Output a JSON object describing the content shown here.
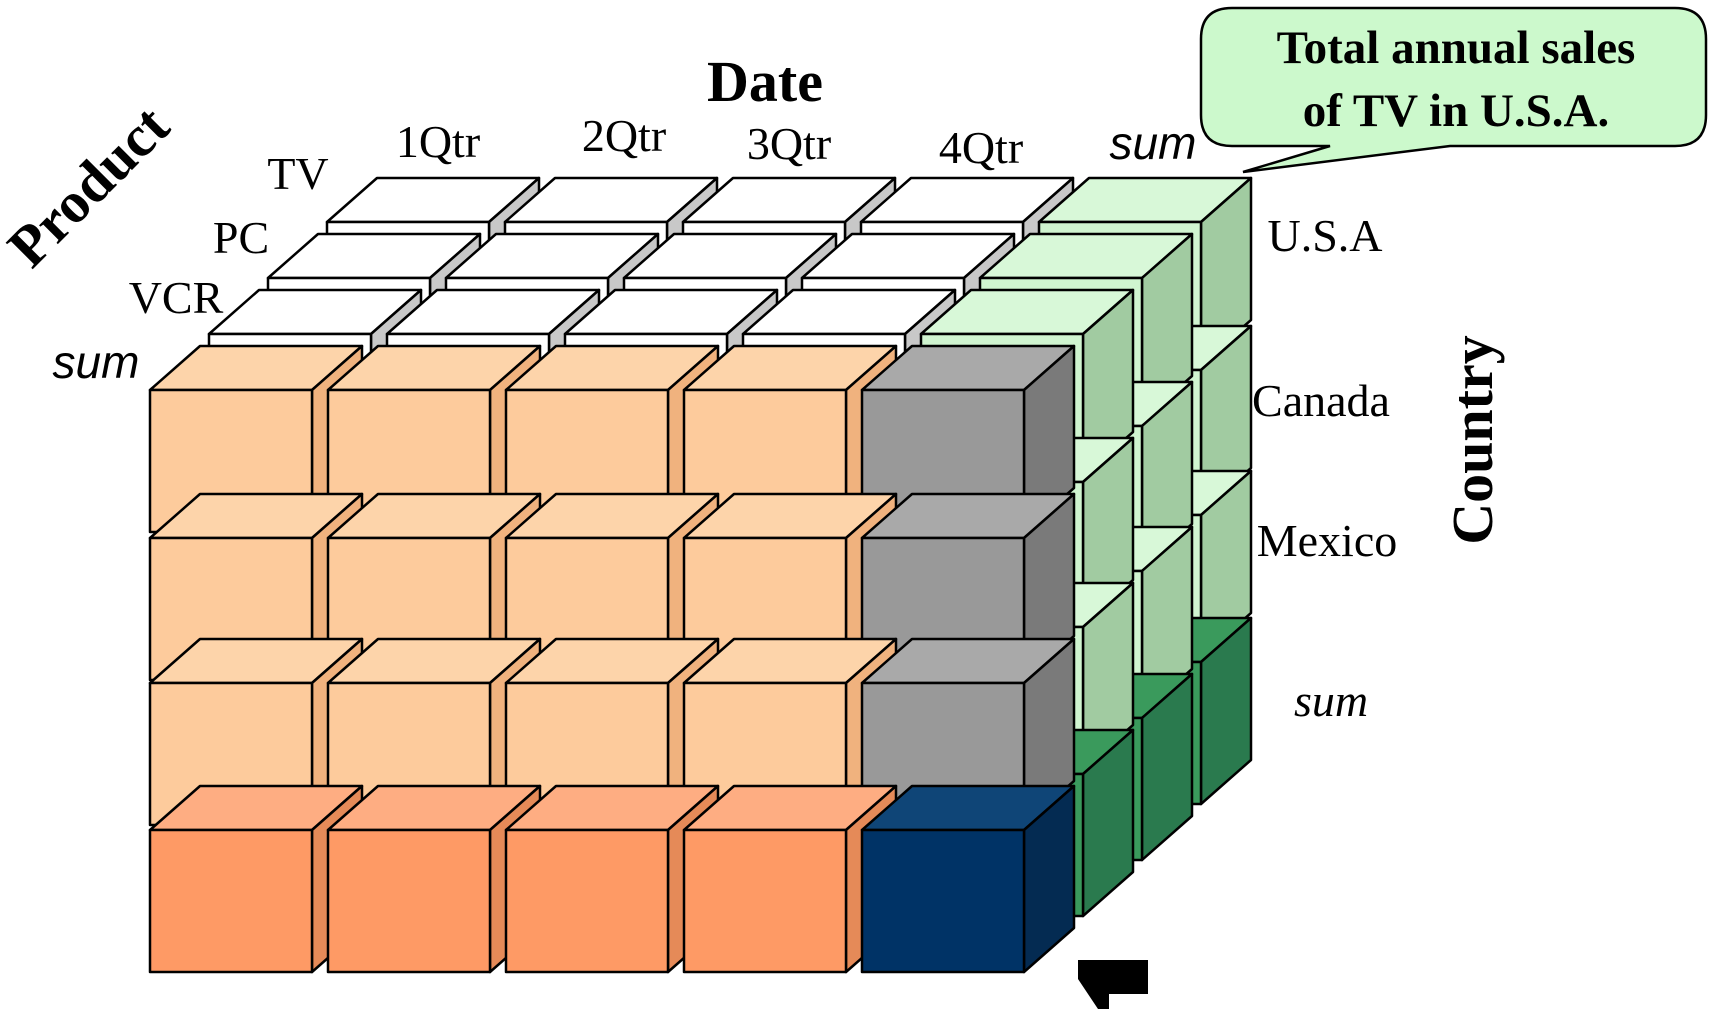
{
  "axes": {
    "date": {
      "title": "Date",
      "labels": [
        "1Qtr",
        "2Qtr",
        "3Qtr",
        "4Qtr",
        "sum"
      ]
    },
    "product": {
      "title": "Product",
      "labels": [
        "TV",
        "PC",
        "VCR",
        "sum"
      ]
    },
    "country": {
      "title": "Country",
      "labels": [
        "U.S.A",
        "Canada",
        "Mexico",
        "sum"
      ]
    }
  },
  "callout": {
    "line1": "Total annual sales",
    "line2": "of  TV in U.S.A."
  },
  "colors": {
    "base_front": "#FDCB9C",
    "base_top": "#FDD4AA",
    "base_side": "#F0B27E",
    "sum_row_front": "#FE9A65",
    "sum_row_top": "#FEAD82",
    "sum_row_side": "#E58A58",
    "sum_col_front": "#999999",
    "sum_col_top": "#A9A9A9",
    "sum_col_side": "#7A7A7A",
    "corner_front": "#003366",
    "corner_top": "#0F4577",
    "corner_side": "#042B52",
    "sum_depth_front": "#D0F5D0",
    "sum_depth_top": "#D8F8D8",
    "sum_depth_side": "#A1CBA1",
    "sum_depth_bottom_front": "#3A9A5C",
    "sum_depth_bottom_side": "#2A7A4E",
    "hidden_top": "#FFFFFF",
    "hidden_shadow": "#C8C8C8",
    "callout_fill": "#CCF9CC",
    "arrow": "#000000"
  }
}
